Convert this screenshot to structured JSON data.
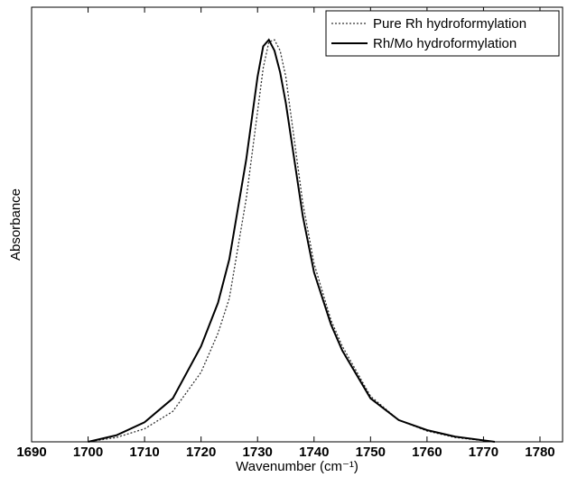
{
  "chart_data": {
    "type": "line",
    "x_label": "Wavenumber (cm⁻¹)",
    "y_label": "Absorbance",
    "x": [
      1700,
      1705,
      1710,
      1715,
      1720,
      1723,
      1725,
      1728,
      1730,
      1731,
      1732,
      1733,
      1734,
      1735,
      1738,
      1740,
      1743,
      1745,
      1750,
      1755,
      1760,
      1765,
      1772
    ],
    "series": [
      {
        "name": "Pure Rh hydroformylation",
        "color": "#333333",
        "dash": "2,2",
        "values": [
          0,
          0.01,
          0.03,
          0.07,
          0.16,
          0.25,
          0.33,
          0.56,
          0.76,
          0.86,
          0.92,
          0.925,
          0.9,
          0.84,
          0.55,
          0.41,
          0.28,
          0.22,
          0.105,
          0.05,
          0.025,
          0.01,
          0
        ]
      },
      {
        "name": "Rh/Mo hydroformylation",
        "color": "#000000",
        "dash": "none",
        "values": [
          0,
          0.015,
          0.045,
          0.1,
          0.22,
          0.32,
          0.42,
          0.65,
          0.84,
          0.91,
          0.925,
          0.9,
          0.85,
          0.78,
          0.52,
          0.39,
          0.27,
          0.21,
          0.1,
          0.05,
          0.027,
          0.012,
          0
        ]
      }
    ],
    "xlim": [
      1690,
      1784
    ],
    "xticks": [
      1690,
      1700,
      1710,
      1720,
      1730,
      1740,
      1750,
      1760,
      1770,
      1780
    ],
    "ylim": [
      0,
      1
    ],
    "legend": "top-right"
  }
}
